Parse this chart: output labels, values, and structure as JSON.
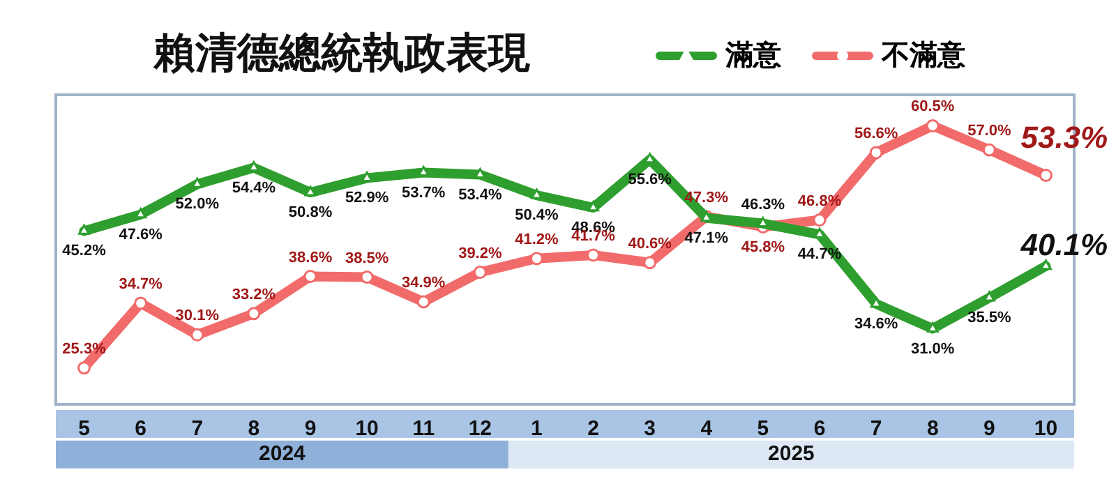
{
  "chart_data": {
    "type": "line",
    "title": "賴清德總統執政表現",
    "categories": [
      "5",
      "6",
      "7",
      "8",
      "9",
      "10",
      "11",
      "12",
      "1",
      "2",
      "3",
      "4",
      "5",
      "6",
      "7",
      "8",
      "9",
      "10"
    ],
    "series": [
      {
        "name": "滿意",
        "color": "#2e9e2e",
        "marker": "triangle",
        "values": [
          45.2,
          47.6,
          52.0,
          54.4,
          50.8,
          52.9,
          53.7,
          53.4,
          50.4,
          48.6,
          55.6,
          47.1,
          46.3,
          44.7,
          34.6,
          31.0,
          35.5,
          40.1
        ],
        "value_labels": [
          "45.2%",
          "47.6%",
          "52.0%",
          "54.4%",
          "50.8%",
          "52.9%",
          "53.7%",
          "53.4%",
          "50.4%",
          "48.6%",
          "55.6%",
          "47.1%",
          "46.3%",
          "44.7%",
          "34.6%",
          "31.0%",
          "35.5%",
          "40.1%"
        ]
      },
      {
        "name": "不滿意",
        "color": "#f26b6b",
        "marker": "circle",
        "values": [
          25.3,
          34.7,
          30.1,
          33.2,
          38.6,
          38.5,
          34.9,
          39.2,
          41.2,
          41.7,
          40.6,
          47.3,
          45.8,
          46.8,
          56.6,
          60.5,
          57.0,
          53.3
        ],
        "value_labels": [
          "25.3%",
          "34.7%",
          "30.1%",
          "33.2%",
          "38.6%",
          "38.5%",
          "34.9%",
          "39.2%",
          "41.2%",
          "41.7%",
          "40.6%",
          "47.3%",
          "45.8%",
          "46.8%",
          "56.6%",
          "60.5%",
          "57.0%",
          "53.3%"
        ]
      }
    ],
    "annotations": [
      "2024",
      "2025"
    ],
    "legend": "top right",
    "grid": false,
    "line_style": "solid"
  }
}
